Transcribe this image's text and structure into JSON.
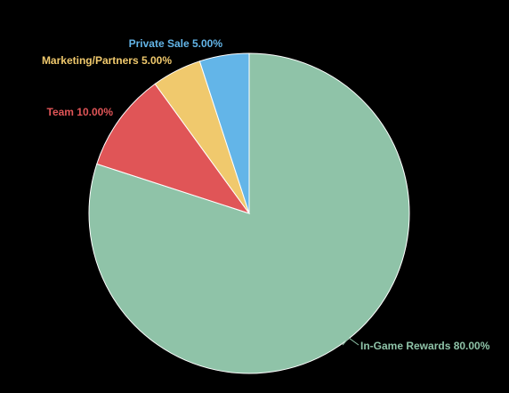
{
  "chart_data": {
    "type": "pie",
    "title": "",
    "slices": [
      {
        "name": "In-Game Rewards",
        "value": 80.0,
        "label": "In-Game Rewards 80.00%",
        "color": "#8fc3a8"
      },
      {
        "name": "Team",
        "value": 10.0,
        "label": "Team 10.00%",
        "color": "#e05557"
      },
      {
        "name": "Marketing/Partners",
        "value": 5.0,
        "label": "Marketing/Partners 5.00%",
        "color": "#f0c96d"
      },
      {
        "name": "Private Sale",
        "value": 5.0,
        "label": "Private Sale 5.00%",
        "color": "#63b5e8"
      }
    ],
    "start_angle_deg": 0,
    "direction": "clockwise",
    "background": "#000000",
    "slice_border_color": "#ffffff"
  }
}
